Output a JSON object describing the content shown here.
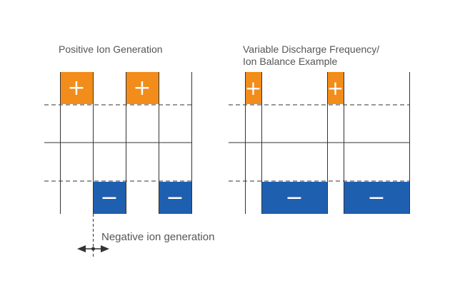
{
  "left_panel": {
    "title": "Positive Ion Generation",
    "annotation": "Negative ion generation",
    "positive_pulses": [
      {
        "symbol": "+"
      },
      {
        "symbol": "+"
      }
    ],
    "negative_pulses": [
      {
        "symbol": "−"
      },
      {
        "symbol": "−"
      }
    ]
  },
  "right_panel": {
    "title_line1": "Variable Discharge Frequency/",
    "title_line2": "Ion Balance Example",
    "positive_pulses": [
      {
        "symbol": "+"
      },
      {
        "symbol": "+"
      }
    ],
    "negative_pulses": [
      {
        "symbol": "−"
      },
      {
        "symbol": "−"
      }
    ]
  },
  "colors": {
    "positive": "#f28c1a",
    "negative": "#1f5fb0",
    "line": "#333333",
    "text": "#555555"
  }
}
